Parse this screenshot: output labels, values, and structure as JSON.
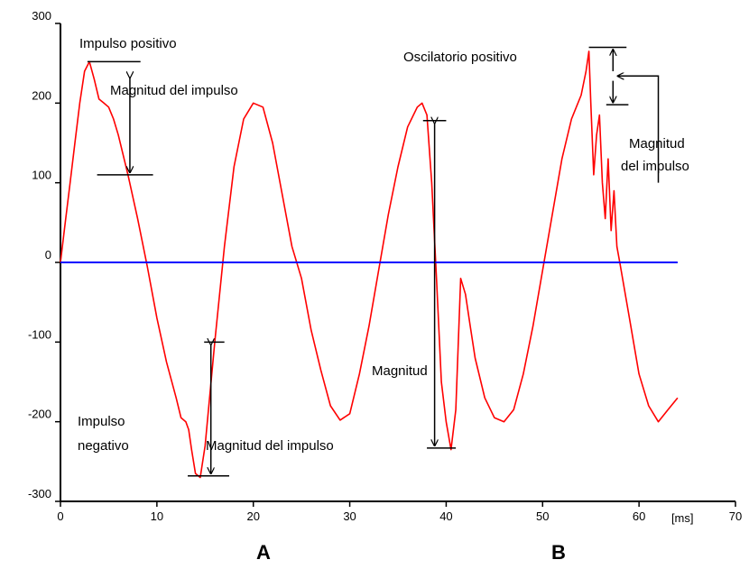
{
  "chart_data": {
    "type": "line",
    "xlim": [
      0,
      70
    ],
    "ylim": [
      -300,
      300
    ],
    "x_ticks": [
      "0",
      "10",
      "20",
      "30",
      "40",
      "50",
      "60",
      "70"
    ],
    "y_ticks": [
      "300",
      "200",
      "100",
      "0",
      "-100",
      "-200",
      "-300"
    ],
    "x_unit_label": "[ms]",
    "grid": false,
    "colors": {
      "signal": "#ff0000",
      "baseline": "#0000ff",
      "axes": "#000000",
      "arrows": "#000000"
    },
    "series": [
      {
        "role": "signal",
        "x": [
          0,
          0.5,
          1.0,
          1.5,
          2.0,
          2.5,
          3.0,
          3.5,
          4.0,
          4.5,
          5.0,
          5.5,
          6.0,
          7.0,
          8.0,
          9.0,
          10.0,
          11.0,
          12.0,
          12.5,
          13.0,
          13.3,
          13.6,
          14.0,
          14.5,
          15.0,
          16.0,
          17.0,
          18.0,
          19.0,
          20.0,
          21.0,
          22.0,
          23.0,
          24.0,
          25.0,
          26.0,
          27.0,
          28.0,
          29.0,
          30.0,
          31.0,
          32.0,
          33.0,
          34.0,
          35.0,
          36.0,
          37.0,
          37.5,
          38.0,
          38.5,
          39.0,
          39.5,
          40.0,
          40.5,
          41.0,
          41.5,
          42.0,
          42.5,
          43.0,
          44.0,
          45.0,
          46.0,
          47.0,
          48.0,
          49.0,
          50.0,
          51.0,
          52.0,
          53.0,
          54.0,
          54.5,
          54.8,
          55.0,
          55.3,
          55.6,
          55.9,
          56.2,
          56.5,
          56.8,
          57.1,
          57.4,
          57.7,
          58.0,
          59.0,
          60.0,
          61.0,
          62.0,
          63.0,
          64.0
        ],
        "y": [
          0,
          50,
          100,
          150,
          200,
          240,
          252,
          230,
          205,
          200,
          195,
          180,
          160,
          110,
          55,
          -5,
          -70,
          -125,
          -170,
          -195,
          -200,
          -210,
          -235,
          -265,
          -270,
          -230,
          -100,
          20,
          120,
          180,
          200,
          195,
          150,
          85,
          20,
          -20,
          -85,
          -135,
          -180,
          -198,
          -190,
          -140,
          -80,
          -10,
          60,
          120,
          170,
          195,
          200,
          185,
          100,
          -20,
          -150,
          -200,
          -235,
          -185,
          -20,
          -40,
          -80,
          -120,
          -170,
          -195,
          -200,
          -185,
          -140,
          -80,
          -10,
          60,
          130,
          180,
          210,
          240,
          265,
          200,
          110,
          160,
          185,
          100,
          55,
          130,
          40,
          90,
          20,
          0,
          -70,
          -140,
          -180,
          -200,
          -185,
          -170
        ]
      },
      {
        "role": "baseline",
        "x": [
          0,
          64
        ],
        "y": [
          0,
          0
        ]
      }
    ],
    "annotations": {
      "impulso_positivo": "Impulso positivo",
      "magnitud_impulso_1": "Magnitud del impulso",
      "impulso_negativo_1": "Impulso",
      "impulso_negativo_2": "negativo",
      "magnitud_impulso_2": "Magnitud del impulso",
      "magnitud": "Magnitud",
      "oscilatorio_positivo": "Oscilatorio positivo",
      "magnitud_impulso_3a": "Magnitud",
      "magnitud_impulso_3b": "del impulso",
      "label_a": "A",
      "label_b": "B"
    },
    "measurement_lines": {
      "pos_impulse": {
        "x_from": 2.8,
        "x_to": 8.3,
        "y_top": 252,
        "y_bottom": 110,
        "arrow_x": 7.2
      },
      "neg_impulse": {
        "x_from": 13.2,
        "x_to": 17.0,
        "y_top": -100,
        "y_bottom": -268,
        "arrow_x": 15.6
      },
      "total_magnitude": {
        "x_from": 37.6,
        "x_to": 40.0,
        "x_bottom_from": 38.0,
        "x_bottom_to": 41.0,
        "y_top": 178,
        "y_bottom": -233,
        "arrow_x": 38.8
      },
      "osc_impulse": {
        "x_from": 54.8,
        "x_to": 58.0,
        "y_top": 270,
        "y_bottom": 198,
        "arrow_x": 57.3
      }
    }
  }
}
